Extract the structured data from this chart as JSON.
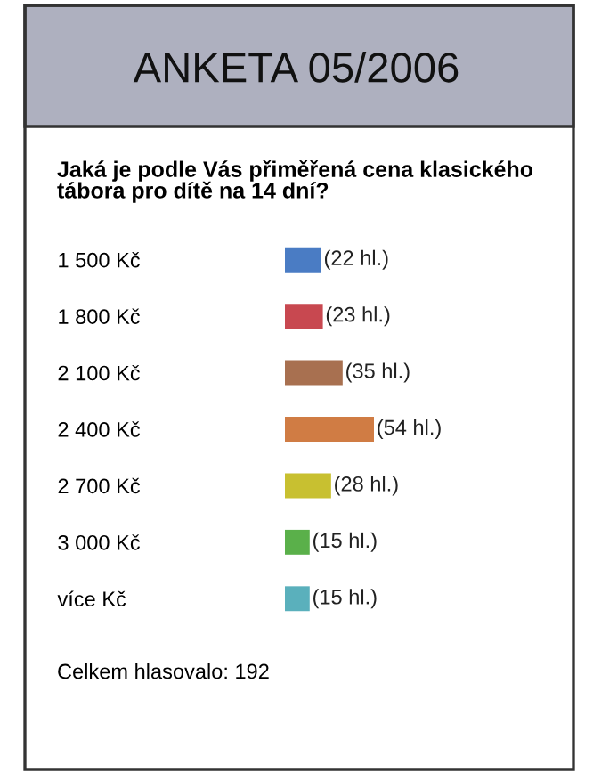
{
  "chart_data": {
    "type": "bar",
    "orientation": "horizontal",
    "title": "ANKETA 05/2006",
    "subtitle": "Jaká je podle Vás přiměřená cena klasického tábora pro dítě na 14 dní?",
    "categories": [
      "1 500 Kč",
      "1 800 Kč",
      "2 100 Kč",
      "2 400 Kč",
      "2 700 Kč",
      "3 000 Kč",
      "více Kč"
    ],
    "values": [
      22,
      23,
      35,
      54,
      28,
      15,
      15
    ],
    "value_labels": [
      "(22 hl.)",
      "(23 hl.)",
      "(35 hl.)",
      "(54 hl.)",
      "(28 hl.)",
      "(15 hl.)",
      "(15 hl.)"
    ],
    "colors": [
      "#4a7cc4",
      "#c84850",
      "#a87050",
      "#d07c44",
      "#c8c030",
      "#5ab04a",
      "#5ab0bc"
    ],
    "tick_labels": "y",
    "annotations": [
      "Celkem hlasovalo: 192"
    ]
  }
}
